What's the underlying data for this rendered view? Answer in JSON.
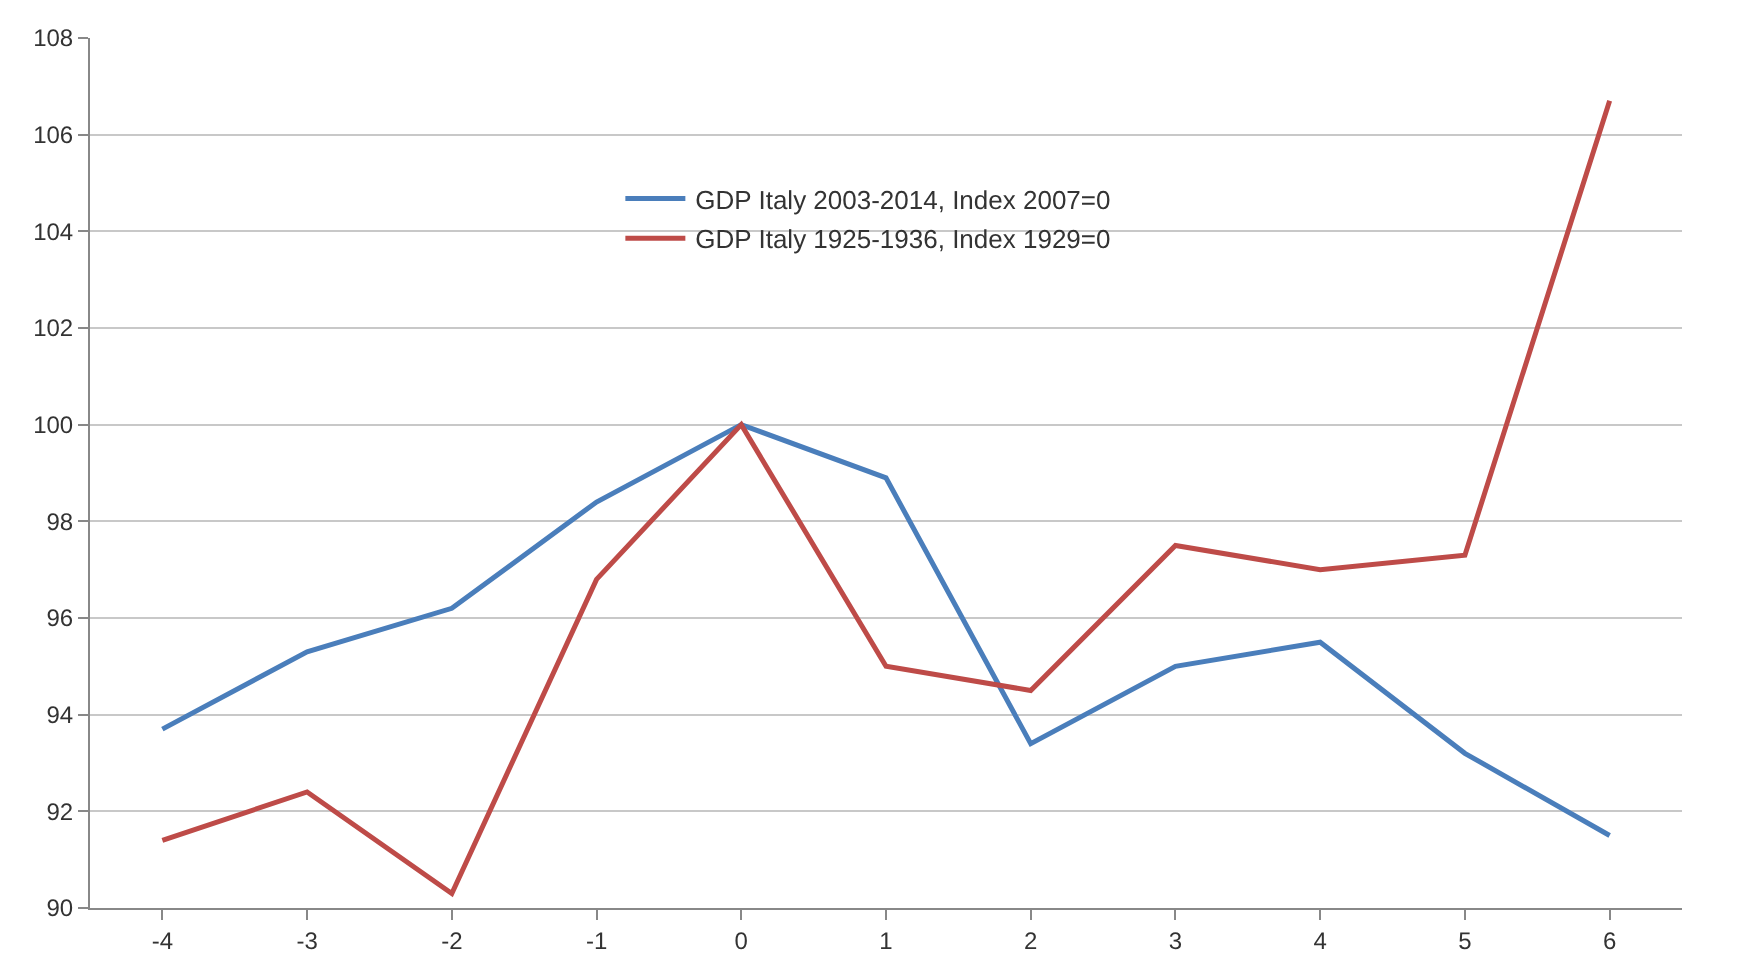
{
  "chart_data": {
    "type": "line",
    "x": [
      -4,
      -3,
      -2,
      -1,
      0,
      1,
      2,
      3,
      4,
      5,
      6
    ],
    "series": [
      {
        "name": "GDP Italy 2003-2014, Index 2007=0",
        "color": "#4a7ebb",
        "values": [
          93.7,
          95.3,
          96.2,
          98.4,
          100,
          98.9,
          93.4,
          95.0,
          95.5,
          93.2,
          91.5
        ]
      },
      {
        "name": "GDP Italy 1925-1936, Index 1929=0",
        "color": "#be4b48",
        "values": [
          91.4,
          92.4,
          90.3,
          96.8,
          100,
          95.0,
          94.5,
          97.5,
          97.0,
          97.3,
          106.7
        ]
      }
    ],
    "xlim": [
      -4.5,
      6.5
    ],
    "xticks": [
      -4,
      -3,
      -2,
      -1,
      0,
      1,
      2,
      3,
      4,
      5,
      6
    ],
    "ylim": [
      90,
      108
    ],
    "yticks": [
      90,
      92,
      94,
      96,
      98,
      100,
      102,
      104,
      106,
      108
    ],
    "grid": "y",
    "legend": "top",
    "marker": "none",
    "line_style": "solid"
  }
}
